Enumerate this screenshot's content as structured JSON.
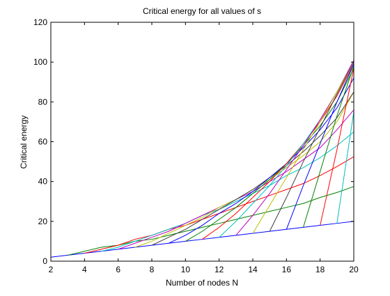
{
  "chart_data": {
    "type": "line",
    "title": "Critical energy for all values of s",
    "xlabel": "Number of nodes N",
    "ylabel": "Critical energy",
    "xlim": [
      2,
      20
    ],
    "ylim": [
      0,
      120
    ],
    "xticks": [
      "2",
      "4",
      "6",
      "8",
      "10",
      "12",
      "14",
      "16",
      "18",
      "20"
    ],
    "yticks": [
      "0",
      "20",
      "40",
      "60",
      "80",
      "100",
      "120"
    ],
    "grid": false,
    "legend": "none",
    "x": [
      2,
      3,
      4,
      5,
      6,
      7,
      8,
      9,
      10,
      11,
      12,
      13,
      14,
      15,
      16,
      17,
      18,
      19,
      20
    ],
    "series": [
      {
        "color": "#0000ff",
        "points": [
          [
            2,
            2
          ],
          [
            3,
            3
          ],
          [
            4,
            4
          ],
          [
            5,
            5
          ],
          [
            6,
            6
          ],
          [
            7,
            7
          ],
          [
            8,
            8
          ],
          [
            9,
            9
          ],
          [
            10,
            10
          ],
          [
            11,
            11
          ],
          [
            12,
            12
          ],
          [
            13,
            13
          ],
          [
            14,
            14
          ],
          [
            15,
            15
          ],
          [
            16,
            16
          ],
          [
            17,
            17
          ],
          [
            18,
            18
          ],
          [
            19,
            19
          ],
          [
            20,
            20
          ]
        ]
      },
      {
        "color": "#008000",
        "points": [
          [
            3,
            3
          ],
          [
            4,
            5
          ],
          [
            5,
            7
          ],
          [
            6,
            8
          ],
          [
            7,
            10
          ],
          [
            8,
            11
          ],
          [
            9,
            13
          ],
          [
            10,
            15
          ],
          [
            11,
            17
          ],
          [
            12,
            19
          ],
          [
            13,
            21
          ],
          [
            14,
            23
          ],
          [
            15,
            25
          ],
          [
            16,
            27
          ],
          [
            17,
            29
          ],
          [
            18,
            32
          ],
          [
            19,
            34.5
          ],
          [
            20,
            37.5
          ]
        ]
      },
      {
        "color": "#ff0000",
        "points": [
          [
            4,
            4
          ],
          [
            5,
            6
          ],
          [
            6,
            8
          ],
          [
            7,
            11
          ],
          [
            8,
            13
          ],
          [
            9,
            16
          ],
          [
            10,
            18
          ],
          [
            11,
            21
          ],
          [
            12,
            24
          ],
          [
            13,
            27
          ],
          [
            14,
            30
          ],
          [
            15,
            33
          ],
          [
            16,
            36
          ],
          [
            17,
            39
          ],
          [
            18,
            43
          ],
          [
            19,
            47.5
          ],
          [
            20,
            52.5
          ]
        ]
      },
      {
        "color": "#00bfbf",
        "points": [
          [
            5,
            5
          ],
          [
            6,
            7
          ],
          [
            7,
            10
          ],
          [
            8,
            13
          ],
          [
            9,
            16
          ],
          [
            10,
            19
          ],
          [
            11,
            23
          ],
          [
            12,
            26
          ],
          [
            13,
            30
          ],
          [
            14,
            34
          ],
          [
            15,
            38
          ],
          [
            16,
            43
          ],
          [
            17,
            47
          ],
          [
            18,
            52
          ],
          [
            19,
            58
          ],
          [
            20,
            65
          ]
        ]
      },
      {
        "color": "#bf00bf",
        "points": [
          [
            6,
            6
          ],
          [
            7,
            9
          ],
          [
            8,
            12
          ],
          [
            9,
            15
          ],
          [
            10,
            19
          ],
          [
            11,
            23
          ],
          [
            12,
            27
          ],
          [
            13,
            31
          ],
          [
            14,
            35
          ],
          [
            15,
            40
          ],
          [
            16,
            45
          ],
          [
            17,
            51
          ],
          [
            18,
            57
          ],
          [
            19,
            66
          ],
          [
            20,
            76
          ]
        ]
      },
      {
        "color": "#bfbf00",
        "points": [
          [
            7,
            7
          ],
          [
            8,
            10
          ],
          [
            9,
            14
          ],
          [
            10,
            18
          ],
          [
            11,
            22
          ],
          [
            12,
            27
          ],
          [
            13,
            31
          ],
          [
            14,
            36
          ],
          [
            15,
            41
          ],
          [
            16,
            47
          ],
          [
            17,
            53
          ],
          [
            18,
            60
          ],
          [
            19,
            70
          ],
          [
            20,
            85
          ]
        ]
      },
      {
        "color": "#404040",
        "points": [
          [
            8,
            8
          ],
          [
            9,
            12
          ],
          [
            10,
            16
          ],
          [
            11,
            21
          ],
          [
            12,
            26
          ],
          [
            13,
            31
          ],
          [
            14,
            36
          ],
          [
            15,
            42
          ],
          [
            16,
            48
          ],
          [
            17,
            55
          ],
          [
            18,
            63
          ],
          [
            19,
            72
          ],
          [
            20,
            85
          ]
        ]
      },
      {
        "color": "#0000ff",
        "points": [
          [
            9,
            9
          ],
          [
            10,
            13
          ],
          [
            11,
            18
          ],
          [
            12,
            24
          ],
          [
            13,
            29
          ],
          [
            14,
            35
          ],
          [
            15,
            42
          ],
          [
            16,
            49
          ],
          [
            17,
            57
          ],
          [
            18,
            66
          ],
          [
            19,
            77
          ],
          [
            20,
            92
          ]
        ]
      },
      {
        "color": "#008000",
        "points": [
          [
            10,
            10
          ],
          [
            11,
            15
          ],
          [
            12,
            21
          ],
          [
            13,
            27
          ],
          [
            14,
            34
          ],
          [
            15,
            41
          ],
          [
            16,
            49
          ],
          [
            17,
            58
          ],
          [
            18,
            68
          ],
          [
            19,
            80
          ],
          [
            20,
            97
          ]
        ]
      },
      {
        "color": "#ff0000",
        "points": [
          [
            11,
            11
          ],
          [
            12,
            17
          ],
          [
            13,
            24
          ],
          [
            14,
            32
          ],
          [
            15,
            40
          ],
          [
            16,
            49
          ],
          [
            17,
            59
          ],
          [
            18,
            70
          ],
          [
            19,
            83
          ],
          [
            20,
            99
          ]
        ]
      },
      {
        "color": "#00bfbf",
        "points": [
          [
            12,
            12
          ],
          [
            13,
            20
          ],
          [
            14,
            29
          ],
          [
            15,
            38
          ],
          [
            16,
            48
          ],
          [
            17,
            59
          ],
          [
            18,
            71
          ],
          [
            19,
            85
          ],
          [
            20,
            100
          ]
        ]
      },
      {
        "color": "#bf00bf",
        "points": [
          [
            13,
            13
          ],
          [
            14,
            23
          ],
          [
            15,
            34
          ],
          [
            16,
            46
          ],
          [
            17,
            58
          ],
          [
            18,
            71
          ],
          [
            19,
            85
          ],
          [
            20,
            101
          ]
        ]
      },
      {
        "color": "#bfbf00",
        "points": [
          [
            14,
            14
          ],
          [
            15,
            28
          ],
          [
            16,
            42
          ],
          [
            17,
            56
          ],
          [
            18,
            70
          ],
          [
            19,
            85
          ],
          [
            20,
            100
          ]
        ]
      },
      {
        "color": "#404040",
        "points": [
          [
            15,
            15
          ],
          [
            16,
            32
          ],
          [
            17,
            50
          ],
          [
            18,
            67
          ],
          [
            19,
            84
          ],
          [
            20,
            100
          ]
        ]
      },
      {
        "color": "#0000ff",
        "points": [
          [
            16,
            16
          ],
          [
            17,
            38
          ],
          [
            18,
            59
          ],
          [
            19,
            80
          ],
          [
            20,
            99
          ]
        ]
      },
      {
        "color": "#008000",
        "points": [
          [
            17,
            17
          ],
          [
            18,
            45
          ],
          [
            19,
            73
          ],
          [
            20,
            98
          ]
        ]
      },
      {
        "color": "#ff0000",
        "points": [
          [
            18,
            18
          ],
          [
            19,
            56
          ],
          [
            20,
            97
          ]
        ]
      },
      {
        "color": "#00bfbf",
        "points": [
          [
            19,
            19
          ],
          [
            20,
            75
          ]
        ]
      }
    ]
  }
}
